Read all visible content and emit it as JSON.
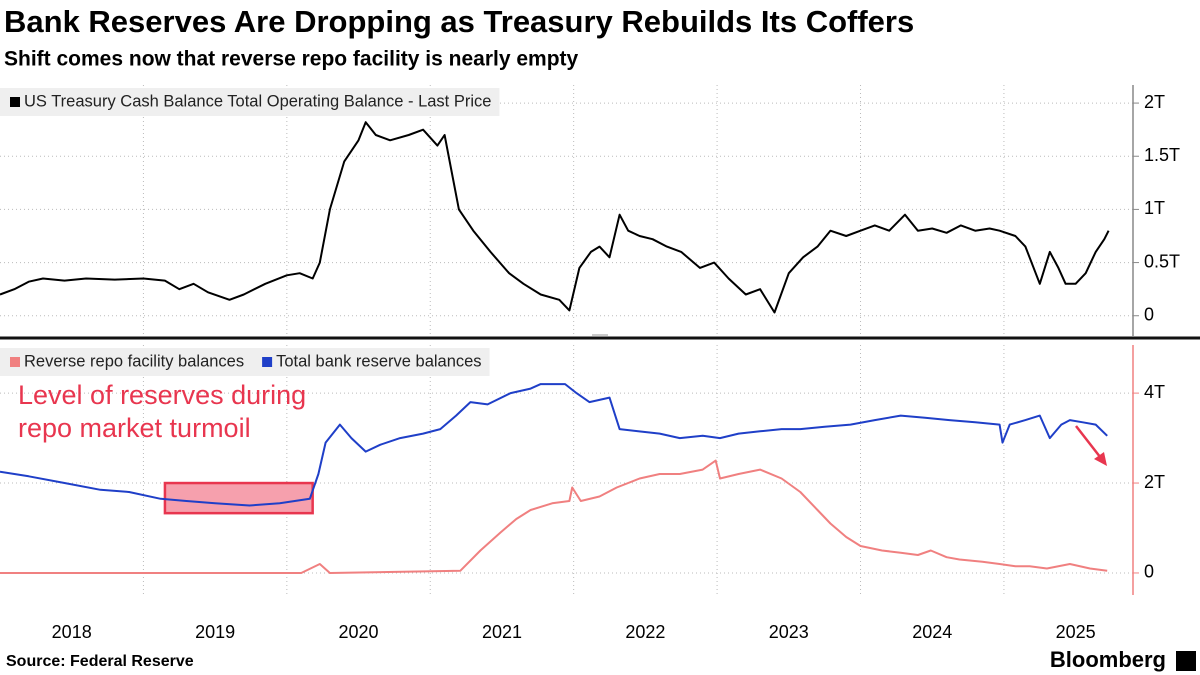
{
  "title": "Bank Reserves Are Dropping as Treasury Rebuilds Its Coffers",
  "subtitle": "Shift comes now that reverse repo facility is nearly empty",
  "source": "Source: Federal Reserve",
  "brand": "Bloomberg",
  "chart_data": [
    {
      "type": "line",
      "xlim": [
        2018,
        2025.9
      ],
      "xgrid": [
        2019,
        2020,
        2021,
        2022,
        2023,
        2024,
        2025
      ],
      "ylim": [
        -0.2,
        2.17
      ],
      "yticks": [
        0,
        {
          "value": 0.5,
          "label": "0.5T"
        },
        {
          "value": 1,
          "label": "1T"
        },
        {
          "value": 1.5,
          "label": "1.5T"
        },
        {
          "value": 2,
          "label": "2T"
        }
      ],
      "grid": true,
      "axis_color": "#888",
      "series": [
        {
          "name": "US Treasury Cash Balance Total Operating Balance - Last Price",
          "color": "#000000",
          "x": [
            2018.0,
            2018.1,
            2018.2,
            2018.3,
            2018.45,
            2018.6,
            2018.8,
            2019.0,
            2019.15,
            2019.25,
            2019.35,
            2019.45,
            2019.6,
            2019.7,
            2019.85,
            2020.0,
            2020.09,
            2020.18,
            2020.23,
            2020.3,
            2020.4,
            2020.5,
            2020.55,
            2020.62,
            2020.72,
            2020.85,
            2020.95,
            2021.05,
            2021.1,
            2021.2,
            2021.3,
            2021.42,
            2021.55,
            2021.65,
            2021.77,
            2021.9,
            2021.97,
            2022.04,
            2022.12,
            2022.18,
            2022.25,
            2022.32,
            2022.38,
            2022.46,
            2022.55,
            2022.65,
            2022.75,
            2022.88,
            2022.98,
            2023.08,
            2023.2,
            2023.3,
            2023.4,
            2023.5,
            2023.6,
            2023.7,
            2023.79,
            2023.9,
            2024.0,
            2024.1,
            2024.2,
            2024.31,
            2024.4,
            2024.5,
            2024.6,
            2024.7,
            2024.8,
            2024.9,
            2024.97,
            2025.08,
            2025.15,
            2025.25,
            2025.32,
            2025.38,
            2025.43,
            2025.5,
            2025.57,
            2025.64,
            2025.7,
            2025.73
          ],
          "values": [
            0.2,
            0.25,
            0.32,
            0.35,
            0.33,
            0.35,
            0.34,
            0.35,
            0.33,
            0.25,
            0.3,
            0.22,
            0.15,
            0.2,
            0.3,
            0.38,
            0.4,
            0.35,
            0.5,
            1.0,
            1.45,
            1.65,
            1.82,
            1.7,
            1.65,
            1.7,
            1.75,
            1.6,
            1.7,
            1.0,
            0.8,
            0.6,
            0.4,
            0.3,
            0.2,
            0.15,
            0.05,
            0.45,
            0.6,
            0.65,
            0.55,
            0.95,
            0.8,
            0.75,
            0.72,
            0.65,
            0.6,
            0.45,
            0.5,
            0.35,
            0.2,
            0.25,
            0.03,
            0.4,
            0.55,
            0.65,
            0.8,
            0.75,
            0.8,
            0.85,
            0.8,
            0.95,
            0.8,
            0.82,
            0.78,
            0.85,
            0.8,
            0.82,
            0.8,
            0.75,
            0.65,
            0.3,
            0.6,
            0.45,
            0.3,
            0.3,
            0.4,
            0.6,
            0.72,
            0.8
          ]
        }
      ]
    },
    {
      "type": "line",
      "xlim": [
        2018,
        2025.9
      ],
      "xgrid": [
        2019,
        2020,
        2021,
        2022,
        2023,
        2024,
        2025
      ],
      "xticks": [
        {
          "value": 2018.5,
          "label": "2018"
        },
        {
          "value": 2019.5,
          "label": "2019"
        },
        {
          "value": 2020.5,
          "label": "2020"
        },
        {
          "value": 2021.5,
          "label": "2021"
        },
        {
          "value": 2022.5,
          "label": "2022"
        },
        {
          "value": 2023.5,
          "label": "2023"
        },
        {
          "value": 2024.5,
          "label": "2024"
        },
        {
          "value": 2025.5,
          "label": "2025"
        }
      ],
      "ylim": [
        -0.49,
        5.07
      ],
      "yticks": [
        0,
        {
          "value": 2,
          "label": "2T"
        },
        {
          "value": 4,
          "label": "4T"
        }
      ],
      "grid": true,
      "axis_color": "#f08080",
      "annotation": {
        "lines": [
          "Level of reserves during",
          "repo market turmoil"
        ],
        "color": "#e8364f",
        "xlim": [
          2019.15,
          2020.18
        ],
        "ylim": [
          1.33,
          2.0
        ]
      },
      "series": [
        {
          "name": "Reverse repo facility balances",
          "color": "#f08080",
          "x": [
            2018.0,
            2019.0,
            2020.1,
            2020.23,
            2020.3,
            2021.21,
            2021.35,
            2021.49,
            2021.6,
            2021.7,
            2021.85,
            2021.97,
            2021.99,
            2022.05,
            2022.18,
            2022.3,
            2022.46,
            2022.6,
            2022.74,
            2022.9,
            2022.99,
            2023.02,
            2023.15,
            2023.3,
            2023.45,
            2023.58,
            2023.7,
            2023.79,
            2023.9,
            2024.0,
            2024.15,
            2024.28,
            2024.4,
            2024.49,
            2024.6,
            2024.69,
            2024.85,
            2024.97,
            2025.08,
            2025.18,
            2025.3,
            2025.46,
            2025.6,
            2025.72
          ],
          "values": [
            0.0,
            0.0,
            0.0,
            0.2,
            0.0,
            0.05,
            0.5,
            0.9,
            1.2,
            1.4,
            1.55,
            1.6,
            1.9,
            1.6,
            1.7,
            1.9,
            2.1,
            2.2,
            2.2,
            2.3,
            2.5,
            2.1,
            2.2,
            2.3,
            2.1,
            1.8,
            1.4,
            1.1,
            0.8,
            0.6,
            0.5,
            0.45,
            0.4,
            0.5,
            0.35,
            0.3,
            0.25,
            0.2,
            0.15,
            0.15,
            0.1,
            0.2,
            0.1,
            0.05
          ]
        },
        {
          "name": "Total bank reserve balances",
          "color": "#1f3fc8",
          "x": [
            2018.0,
            2018.2,
            2018.45,
            2018.7,
            2018.9,
            2019.12,
            2019.3,
            2019.5,
            2019.74,
            2019.95,
            2020.16,
            2020.22,
            2020.27,
            2020.37,
            2020.45,
            2020.55,
            2020.65,
            2020.79,
            2020.95,
            2021.07,
            2021.18,
            2021.28,
            2021.4,
            2021.56,
            2021.7,
            2021.77,
            2021.94,
            2022.02,
            2022.11,
            2022.25,
            2022.32,
            2022.45,
            2022.6,
            2022.74,
            2022.9,
            2023.02,
            2023.15,
            2023.3,
            2023.45,
            2023.58,
            2023.75,
            2023.93,
            2024.1,
            2024.28,
            2024.45,
            2024.62,
            2024.8,
            2024.97,
            2024.99,
            2025.04,
            2025.15,
            2025.25,
            2025.32,
            2025.4,
            2025.46,
            2025.55,
            2025.64,
            2025.72
          ],
          "values": [
            2.25,
            2.15,
            2.0,
            1.85,
            1.8,
            1.65,
            1.6,
            1.55,
            1.5,
            1.55,
            1.65,
            2.2,
            2.9,
            3.3,
            3.0,
            2.7,
            2.85,
            3.0,
            3.1,
            3.2,
            3.5,
            3.8,
            3.75,
            4.0,
            4.1,
            4.2,
            4.2,
            4.0,
            3.8,
            3.9,
            3.2,
            3.15,
            3.1,
            3.0,
            3.05,
            3.0,
            3.1,
            3.15,
            3.2,
            3.2,
            3.25,
            3.3,
            3.4,
            3.5,
            3.45,
            3.4,
            3.35,
            3.3,
            2.9,
            3.3,
            3.4,
            3.5,
            3.0,
            3.3,
            3.4,
            3.35,
            3.3,
            3.05
          ]
        }
      ]
    }
  ]
}
